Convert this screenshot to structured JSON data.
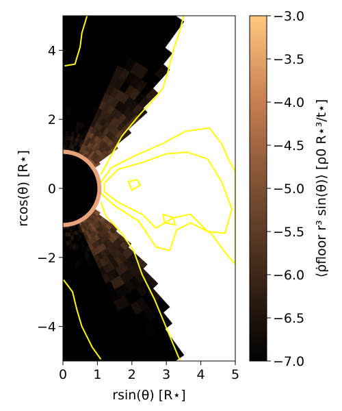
{
  "chart_data": {
    "type": "heatmap",
    "title": "",
    "xlabel": "rsin(θ) [R⋆]",
    "ylabel": "rcos(θ) [R⋆]",
    "colorbar_label": "⟨ρ̇floor r³ sin(θ)⟩ [ρ0 R⋆³/t⋆]",
    "xlim": [
      0,
      5
    ],
    "ylim": [
      -5,
      5
    ],
    "x_ticks": [
      "0",
      "1",
      "2",
      "3",
      "4",
      "5"
    ],
    "y_ticks": [
      "4",
      "2",
      "0",
      "−2",
      "−4"
    ],
    "x_tick_values": [
      0,
      1,
      2,
      3,
      4,
      5
    ],
    "y_tick_values": [
      4,
      2,
      0,
      -2,
      -4
    ],
    "colorbar_range": [
      -7.0,
      -3.0
    ],
    "colorbar_ticks": [
      "−3.0",
      "−3.5",
      "−4.0",
      "−4.5",
      "−5.0",
      "−5.5",
      "−6.0",
      "−6.5",
      "−7.0"
    ],
    "colorbar_tick_values": [
      -3.0,
      -3.5,
      -4.0,
      -4.5,
      -5.0,
      -5.5,
      -6.0,
      -6.5,
      -7.0
    ],
    "colormap": "copper",
    "stellar_radius": 1.0,
    "contour_color": "#ffff00",
    "contours": {
      "outer_upper": [
        [
          0.7,
          5.0
        ],
        [
          0.55,
          4.5
        ],
        [
          0.5,
          4.1
        ],
        [
          0.35,
          3.6
        ],
        [
          0.05,
          3.55
        ]
      ],
      "outer_lower": [
        [
          0.02,
          -2.65
        ],
        [
          0.28,
          -3.0
        ],
        [
          0.4,
          -3.5
        ],
        [
          0.55,
          -4.0
        ],
        [
          0.85,
          -4.6
        ],
        [
          1.1,
          -4.95
        ]
      ],
      "front_upper": [
        [
          3.5,
          5.0
        ],
        [
          3.4,
          4.6
        ],
        [
          3.2,
          4.0
        ],
        [
          3.05,
          3.4
        ],
        [
          2.9,
          2.9
        ],
        [
          2.65,
          2.6
        ],
        [
          2.15,
          2.05
        ],
        [
          1.7,
          1.5
        ],
        [
          1.4,
          0.95
        ],
        [
          1.1,
          0.4
        ]
      ],
      "front_lower": [
        [
          1.1,
          -0.4
        ],
        [
          1.25,
          -0.8
        ],
        [
          1.7,
          -1.3
        ],
        [
          2.05,
          -1.8
        ],
        [
          2.3,
          -2.5
        ],
        [
          2.65,
          -3.2
        ],
        [
          2.9,
          -3.8
        ],
        [
          3.15,
          -4.4
        ],
        [
          3.4,
          -5.0
        ]
      ],
      "equatorial_outer": [
        [
          1.05,
          0.1
        ],
        [
          1.4,
          0.6
        ],
        [
          2.1,
          0.95
        ],
        [
          2.9,
          1.3
        ],
        [
          3.55,
          1.65
        ],
        [
          4.25,
          1.75
        ],
        [
          4.6,
          1.3
        ],
        [
          4.85,
          0.75
        ],
        [
          5.0,
          0.5
        ],
        [
          5.0,
          -2.2
        ],
        [
          4.7,
          -1.85
        ],
        [
          4.3,
          -1.3
        ],
        [
          3.7,
          -1.0
        ],
        [
          3.3,
          -1.2
        ],
        [
          3.1,
          -1.8
        ],
        [
          2.7,
          -1.7
        ],
        [
          2.2,
          -0.95
        ],
        [
          1.5,
          -0.5
        ],
        [
          1.05,
          -0.1
        ]
      ],
      "equatorial_inner": [
        [
          1.2,
          0.15
        ],
        [
          1.6,
          0.55
        ],
        [
          2.3,
          0.75
        ],
        [
          3.0,
          1.0
        ],
        [
          3.6,
          1.05
        ],
        [
          4.2,
          0.85
        ],
        [
          4.6,
          0.2
        ],
        [
          4.9,
          -0.6
        ],
        [
          4.7,
          -1.3
        ],
        [
          4.2,
          -1.25
        ],
        [
          3.7,
          -0.75
        ],
        [
          3.2,
          -0.85
        ],
        [
          2.7,
          -1.15
        ],
        [
          2.3,
          -0.75
        ],
        [
          1.6,
          -0.4
        ],
        [
          1.2,
          -0.1
        ]
      ],
      "blob_a": [
        [
          1.9,
          0.2
        ],
        [
          2.15,
          0.25
        ],
        [
          2.25,
          0.1
        ],
        [
          2.0,
          -0.05
        ]
      ],
      "blob_b": [
        [
          2.9,
          -0.75
        ],
        [
          3.2,
          -0.85
        ],
        [
          3.25,
          -1.05
        ],
        [
          2.95,
          -1.0
        ]
      ]
    }
  }
}
